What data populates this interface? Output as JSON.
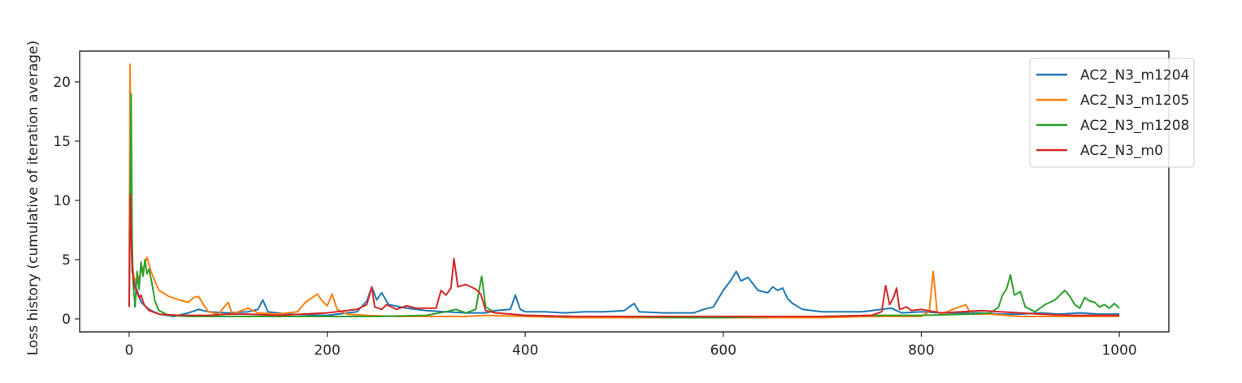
{
  "chart_data": {
    "type": "line",
    "title": "",
    "xlabel": "",
    "ylabel": "Loss history (cumulative of iteration average)",
    "xlim": [
      -50,
      1050
    ],
    "ylim": [
      -1.1,
      22.6
    ],
    "xticks": [
      0,
      200,
      400,
      600,
      800,
      1000
    ],
    "yticks": [
      0,
      5,
      10,
      15,
      20
    ],
    "grid": false,
    "legend_position": "top-right",
    "colors": [
      "#1f77b4",
      "#ff7f0e",
      "#2ca02c",
      "#d62728"
    ],
    "series": [
      {
        "name": "AC2_N3_m1204",
        "color": "#1f77b4",
        "points": [
          [
            0,
            1.2
          ],
          [
            1,
            15.2
          ],
          [
            2,
            10.5
          ],
          [
            3,
            4.0
          ],
          [
            5,
            3.2
          ],
          [
            8,
            2.4
          ],
          [
            12,
            1.4
          ],
          [
            20,
            0.8
          ],
          [
            30,
            0.4
          ],
          [
            45,
            0.2
          ],
          [
            60,
            0.5
          ],
          [
            70,
            0.8
          ],
          [
            80,
            0.6
          ],
          [
            100,
            0.5
          ],
          [
            120,
            0.6
          ],
          [
            130,
            0.8
          ],
          [
            135,
            1.6
          ],
          [
            140,
            0.6
          ],
          [
            160,
            0.4
          ],
          [
            200,
            0.3
          ],
          [
            230,
            0.6
          ],
          [
            240,
            1.5
          ],
          [
            245,
            2.7
          ],
          [
            250,
            1.6
          ],
          [
            255,
            2.2
          ],
          [
            262,
            1.2
          ],
          [
            280,
            0.9
          ],
          [
            300,
            0.7
          ],
          [
            320,
            0.6
          ],
          [
            340,
            0.5
          ],
          [
            360,
            0.5
          ],
          [
            370,
            0.7
          ],
          [
            385,
            0.8
          ],
          [
            390,
            2.0
          ],
          [
            395,
            0.8
          ],
          [
            400,
            0.6
          ],
          [
            420,
            0.6
          ],
          [
            440,
            0.5
          ],
          [
            460,
            0.6
          ],
          [
            480,
            0.6
          ],
          [
            500,
            0.7
          ],
          [
            510,
            1.3
          ],
          [
            515,
            0.6
          ],
          [
            540,
            0.5
          ],
          [
            570,
            0.5
          ],
          [
            580,
            0.8
          ],
          [
            590,
            1.0
          ],
          [
            600,
            2.4
          ],
          [
            608,
            3.3
          ],
          [
            613,
            4.0
          ],
          [
            618,
            3.2
          ],
          [
            625,
            3.5
          ],
          [
            635,
            2.4
          ],
          [
            645,
            2.2
          ],
          [
            650,
            2.7
          ],
          [
            655,
            2.4
          ],
          [
            660,
            2.6
          ],
          [
            665,
            1.7
          ],
          [
            670,
            1.3
          ],
          [
            680,
            0.8
          ],
          [
            700,
            0.6
          ],
          [
            720,
            0.6
          ],
          [
            740,
            0.6
          ],
          [
            760,
            0.8
          ],
          [
            770,
            0.9
          ],
          [
            780,
            0.5
          ],
          [
            800,
            0.6
          ],
          [
            820,
            0.5
          ],
          [
            840,
            0.5
          ],
          [
            860,
            0.5
          ],
          [
            880,
            0.4
          ],
          [
            900,
            0.4
          ],
          [
            920,
            0.5
          ],
          [
            940,
            0.4
          ],
          [
            960,
            0.5
          ],
          [
            980,
            0.4
          ],
          [
            1000,
            0.4
          ]
        ]
      },
      {
        "name": "AC2_N3_m1205",
        "color": "#ff7f0e",
        "points": [
          [
            0,
            1.0
          ],
          [
            1,
            21.5
          ],
          [
            2,
            9.0
          ],
          [
            3,
            4.5
          ],
          [
            5,
            3.5
          ],
          [
            8,
            3.0
          ],
          [
            12,
            4.0
          ],
          [
            15,
            4.4
          ],
          [
            18,
            5.2
          ],
          [
            22,
            4.0
          ],
          [
            26,
            3.2
          ],
          [
            30,
            2.4
          ],
          [
            40,
            1.9
          ],
          [
            50,
            1.6
          ],
          [
            60,
            1.4
          ],
          [
            65,
            1.8
          ],
          [
            70,
            1.9
          ],
          [
            75,
            1.2
          ],
          [
            80,
            0.6
          ],
          [
            90,
            0.4
          ],
          [
            100,
            1.4
          ],
          [
            104,
            0.4
          ],
          [
            120,
            0.9
          ],
          [
            130,
            0.5
          ],
          [
            150,
            0.4
          ],
          [
            170,
            0.6
          ],
          [
            178,
            1.4
          ],
          [
            185,
            1.8
          ],
          [
            190,
            2.1
          ],
          [
            195,
            1.5
          ],
          [
            200,
            1.1
          ],
          [
            205,
            2.1
          ],
          [
            210,
            0.8
          ],
          [
            220,
            0.4
          ],
          [
            240,
            0.3
          ],
          [
            270,
            0.2
          ],
          [
            300,
            0.2
          ],
          [
            340,
            0.2
          ],
          [
            360,
            0.3
          ],
          [
            400,
            0.2
          ],
          [
            450,
            0.1
          ],
          [
            500,
            0.1
          ],
          [
            550,
            0.1
          ],
          [
            600,
            0.1
          ],
          [
            650,
            0.1
          ],
          [
            700,
            0.1
          ],
          [
            750,
            0.2
          ],
          [
            800,
            0.2
          ],
          [
            808,
            0.6
          ],
          [
            812,
            4.0
          ],
          [
            816,
            0.6
          ],
          [
            820,
            0.4
          ],
          [
            835,
            0.9
          ],
          [
            845,
            1.2
          ],
          [
            850,
            0.4
          ],
          [
            870,
            0.4
          ],
          [
            900,
            0.2
          ],
          [
            950,
            0.2
          ],
          [
            1000,
            0.2
          ]
        ]
      },
      {
        "name": "AC2_N3_m1208",
        "color": "#2ca02c",
        "points": [
          [
            0,
            1.1
          ],
          [
            1,
            9.0
          ],
          [
            2,
            19.0
          ],
          [
            3,
            6.5
          ],
          [
            4,
            3.0
          ],
          [
            6,
            1.0
          ],
          [
            8,
            4.0
          ],
          [
            10,
            2.5
          ],
          [
            12,
            4.8
          ],
          [
            14,
            3.6
          ],
          [
            16,
            5.0
          ],
          [
            18,
            3.8
          ],
          [
            20,
            4.2
          ],
          [
            23,
            3.0
          ],
          [
            26,
            1.5
          ],
          [
            30,
            0.7
          ],
          [
            40,
            0.3
          ],
          [
            60,
            0.2
          ],
          [
            100,
            0.2
          ],
          [
            150,
            0.2
          ],
          [
            200,
            0.2
          ],
          [
            250,
            0.2
          ],
          [
            300,
            0.3
          ],
          [
            320,
            0.6
          ],
          [
            330,
            0.8
          ],
          [
            340,
            0.5
          ],
          [
            350,
            0.8
          ],
          [
            356,
            3.6
          ],
          [
            360,
            1.0
          ],
          [
            370,
            0.5
          ],
          [
            400,
            0.3
          ],
          [
            450,
            0.2
          ],
          [
            500,
            0.2
          ],
          [
            550,
            0.1
          ],
          [
            600,
            0.1
          ],
          [
            650,
            0.2
          ],
          [
            700,
            0.2
          ],
          [
            750,
            0.3
          ],
          [
            800,
            0.3
          ],
          [
            850,
            0.4
          ],
          [
            870,
            0.5
          ],
          [
            878,
            1.0
          ],
          [
            882,
            2.0
          ],
          [
            886,
            2.5
          ],
          [
            890,
            3.7
          ],
          [
            894,
            2.0
          ],
          [
            900,
            2.3
          ],
          [
            905,
            1.0
          ],
          [
            915,
            0.6
          ],
          [
            925,
            1.2
          ],
          [
            935,
            1.6
          ],
          [
            940,
            2.0
          ],
          [
            945,
            2.4
          ],
          [
            950,
            1.9
          ],
          [
            955,
            1.2
          ],
          [
            960,
            0.9
          ],
          [
            965,
            1.8
          ],
          [
            970,
            1.5
          ],
          [
            975,
            1.4
          ],
          [
            980,
            1.0
          ],
          [
            985,
            1.2
          ],
          [
            990,
            0.9
          ],
          [
            995,
            1.3
          ],
          [
            1000,
            0.9
          ]
        ]
      },
      {
        "name": "AC2_N3_m0",
        "color": "#d62728",
        "points": [
          [
            0,
            1.0
          ],
          [
            1,
            10.5
          ],
          [
            2,
            7.0
          ],
          [
            3,
            4.3
          ],
          [
            5,
            2.8
          ],
          [
            8,
            2.2
          ],
          [
            10,
            1.8
          ],
          [
            12,
            2.0
          ],
          [
            15,
            1.2
          ],
          [
            20,
            0.7
          ],
          [
            30,
            0.4
          ],
          [
            50,
            0.3
          ],
          [
            80,
            0.3
          ],
          [
            100,
            0.4
          ],
          [
            120,
            0.4
          ],
          [
            150,
            0.3
          ],
          [
            200,
            0.5
          ],
          [
            230,
            0.8
          ],
          [
            240,
            1.2
          ],
          [
            245,
            2.7
          ],
          [
            248,
            1.0
          ],
          [
            255,
            0.8
          ],
          [
            260,
            1.2
          ],
          [
            270,
            0.8
          ],
          [
            280,
            1.1
          ],
          [
            290,
            0.9
          ],
          [
            300,
            0.9
          ],
          [
            310,
            0.9
          ],
          [
            315,
            2.4
          ],
          [
            320,
            2.0
          ],
          [
            325,
            2.6
          ],
          [
            328,
            5.1
          ],
          [
            332,
            2.7
          ],
          [
            340,
            2.9
          ],
          [
            350,
            2.5
          ],
          [
            355,
            2.1
          ],
          [
            360,
            0.7
          ],
          [
            370,
            0.5
          ],
          [
            400,
            0.3
          ],
          [
            450,
            0.2
          ],
          [
            500,
            0.2
          ],
          [
            550,
            0.2
          ],
          [
            600,
            0.2
          ],
          [
            650,
            0.2
          ],
          [
            700,
            0.2
          ],
          [
            750,
            0.3
          ],
          [
            760,
            0.6
          ],
          [
            764,
            2.8
          ],
          [
            768,
            1.2
          ],
          [
            772,
            1.8
          ],
          [
            775,
            2.6
          ],
          [
            778,
            0.8
          ],
          [
            785,
            1.0
          ],
          [
            790,
            0.7
          ],
          [
            800,
            0.8
          ],
          [
            820,
            0.5
          ],
          [
            840,
            0.6
          ],
          [
            860,
            0.7
          ],
          [
            880,
            0.6
          ],
          [
            900,
            0.5
          ],
          [
            920,
            0.4
          ],
          [
            950,
            0.3
          ],
          [
            1000,
            0.3
          ]
        ]
      }
    ]
  }
}
